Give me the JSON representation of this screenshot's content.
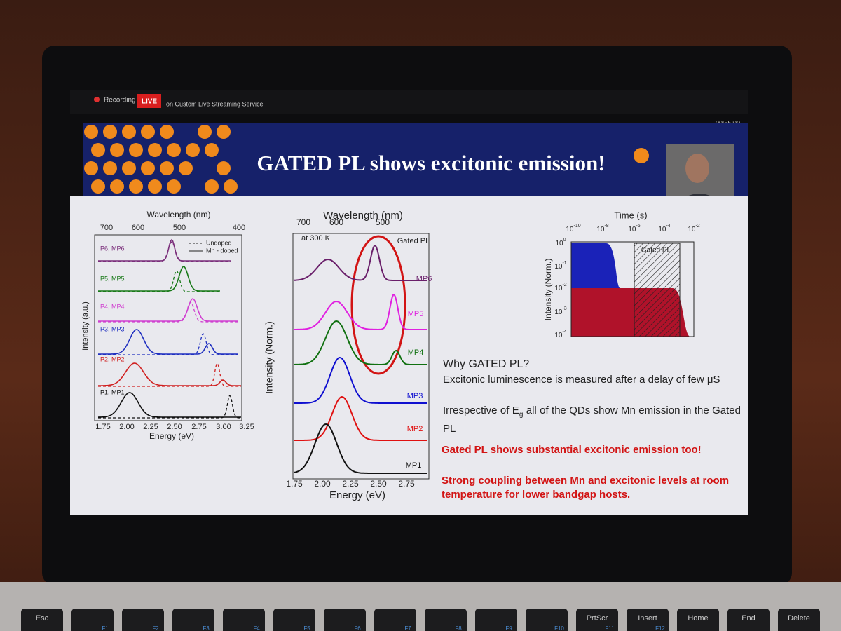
{
  "recording_bar": {
    "recording": "Recording",
    "live": "LIVE",
    "service": "on Custom Live Streaming Service",
    "timer": "00:55:00"
  },
  "slide": {
    "title": "GATED PL shows excitonic emission!",
    "left_plot": {
      "top_axis_label": "Wavelength (nm)",
      "top_ticks": [
        "700",
        "600",
        "500",
        "400"
      ],
      "y_label": "Intensity (a.u.)",
      "x_label": "Energy (eV)",
      "x_ticks": [
        "1.75",
        "2.00",
        "2.25",
        "2.50",
        "2.75",
        "3.00",
        "3.25"
      ],
      "legend": [
        "Undoped",
        "Mn - doped"
      ],
      "traces": [
        "P6, MP6",
        "P5, MP5",
        "P4, MP4",
        "P3, MP3",
        "P2, MP2",
        "P1, MP1"
      ]
    },
    "middle_plot": {
      "top_axis_label": "Wavelength (nm)",
      "top_ticks": [
        "700",
        "600",
        "500"
      ],
      "y_label": "Intensity (Norm.)",
      "x_label": "Energy (eV)",
      "x_ticks": [
        "1.75",
        "2.00",
        "2.25",
        "2.50",
        "2.75"
      ],
      "note": "at 300 K",
      "corner": "Gated PL",
      "traces": [
        "MP6",
        "MP5",
        "MP4",
        "MP3",
        "MP2",
        "MP1"
      ]
    },
    "right_plot": {
      "top_axis_label": "Time (s)",
      "top_ticks": [
        {
          "base": "10",
          "exp": "-10"
        },
        {
          "base": "10",
          "exp": "-8"
        },
        {
          "base": "10",
          "exp": "-6"
        },
        {
          "base": "10",
          "exp": "-4"
        },
        {
          "base": "10",
          "exp": "-2"
        }
      ],
      "y_ticks": [
        {
          "base": "10",
          "exp": "0"
        },
        {
          "base": "10",
          "exp": "-1"
        },
        {
          "base": "10",
          "exp": "-2"
        },
        {
          "base": "10",
          "exp": "-3"
        },
        {
          "base": "10",
          "exp": "-4"
        }
      ],
      "y_label": "Intensity (Norm.)",
      "inset": "Gated PL"
    },
    "text": {
      "question": "Why GATED PL?",
      "line1": "Excitonic luminescence is measured after a delay of few μS",
      "line2_a": "Irrespective of E",
      "line2_sub": "g",
      "line2_b": " all of the QDs show Mn emission in the Gated PL",
      "highlight1": "Gated PL shows substantial excitonic emission too!",
      "highlight2": "Strong coupling between Mn and excitonic levels at room temperature for lower bandgap hosts."
    }
  },
  "keyboard": [
    {
      "main": "Esc"
    },
    {
      "fn": "F1"
    },
    {
      "fn": "F2"
    },
    {
      "fn": "F3"
    },
    {
      "fn": "F4"
    },
    {
      "fn": "F5"
    },
    {
      "fn": "F6"
    },
    {
      "fn": "F7"
    },
    {
      "fn": "F8"
    },
    {
      "fn": "F9"
    },
    {
      "fn": "F10"
    },
    {
      "main": "PrtScr",
      "fn": "F11"
    },
    {
      "main": "Insert",
      "fn": "F12"
    },
    {
      "main": "Home"
    },
    {
      "main": "End"
    },
    {
      "main": "Delete"
    }
  ]
}
